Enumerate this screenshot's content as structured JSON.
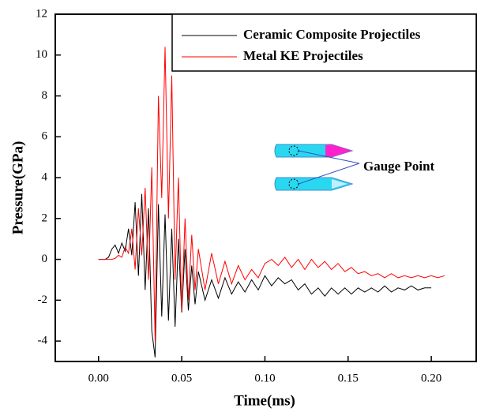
{
  "chart_data": {
    "type": "line",
    "xlabel": "Time(ms)",
    "ylabel": "Pressure(GPa)",
    "annotation": "Gauge Point",
    "x": [
      0,
      0.002,
      0.004,
      0.006,
      0.008,
      0.01,
      0.012,
      0.014,
      0.016,
      0.018,
      0.02,
      0.022,
      0.024,
      0.026,
      0.028,
      0.03,
      0.032,
      0.034,
      0.036,
      0.038,
      0.04,
      0.042,
      0.044,
      0.046,
      0.048,
      0.05,
      0.052,
      0.054,
      0.056,
      0.058,
      0.06,
      0.064,
      0.068,
      0.072,
      0.076,
      0.08,
      0.084,
      0.088,
      0.092,
      0.096,
      0.1,
      0.104,
      0.108,
      0.112,
      0.116,
      0.12,
      0.124,
      0.128,
      0.132,
      0.136,
      0.14,
      0.144,
      0.148,
      0.152,
      0.156,
      0.16,
      0.164,
      0.168,
      0.172,
      0.176,
      0.18,
      0.184,
      0.188,
      0.192,
      0.196,
      0.2,
      0.204,
      0.208
    ],
    "series": [
      {
        "name": "Ceramic Composite Projectiles",
        "color": "#000000",
        "values": [
          0,
          0,
          0,
          0.1,
          0.5,
          0.7,
          0.3,
          0.8,
          0.4,
          1.5,
          0.2,
          2.8,
          -0.8,
          3.2,
          -1.5,
          2.5,
          -3.5,
          -4.8,
          2.7,
          -2.8,
          2.2,
          -3.0,
          1.5,
          -3.3,
          1.0,
          -2.6,
          0.5,
          -2.5,
          -0.3,
          -2.2,
          -0.6,
          -2.0,
          -1.0,
          -1.9,
          -0.9,
          -1.7,
          -1.1,
          -1.6,
          -1.0,
          -1.5,
          -0.8,
          -1.3,
          -0.9,
          -1.2,
          -1.0,
          -1.5,
          -1.2,
          -1.7,
          -1.4,
          -1.8,
          -1.4,
          -1.7,
          -1.4,
          -1.7,
          -1.4,
          -1.6,
          -1.4,
          -1.6,
          -1.3,
          -1.6,
          -1.4,
          -1.5,
          -1.3,
          -1.5,
          -1.4,
          -1.4,
          null,
          null
        ]
      },
      {
        "name": "Metal KE Projectiles",
        "color": "#ff0000",
        "values": [
          0,
          0,
          0,
          0,
          0,
          0.05,
          0.2,
          0.1,
          0.6,
          0.3,
          1.5,
          -0.5,
          2.5,
          0.2,
          3.5,
          -1.0,
          4.5,
          -4.0,
          8.0,
          3.0,
          10.4,
          2.0,
          9.0,
          -1.0,
          4.0,
          -2.5,
          2.0,
          -2.0,
          1.2,
          -1.5,
          0.5,
          -1.5,
          0.3,
          -1.2,
          -0.1,
          -1.2,
          -0.3,
          -1.0,
          -0.5,
          -0.9,
          -0.2,
          0.0,
          -0.3,
          0.1,
          -0.4,
          0.0,
          -0.5,
          0.0,
          -0.4,
          -0.1,
          -0.5,
          -0.2,
          -0.6,
          -0.4,
          -0.7,
          -0.6,
          -0.8,
          -0.7,
          -0.9,
          -0.7,
          -0.9,
          -0.8,
          -0.9,
          -0.8,
          -0.9,
          -0.8,
          -0.9,
          -0.8
        ]
      }
    ],
    "xlim": [
      -0.026,
      0.227
    ],
    "ylim": [
      -5,
      12
    ],
    "xticks": [
      {
        "value": 0,
        "label": "0.00"
      },
      {
        "value": 0.05,
        "label": "0.05"
      },
      {
        "value": 0.1,
        "label": "0.10"
      },
      {
        "value": 0.15,
        "label": "0.15"
      },
      {
        "value": 0.2,
        "label": "0.20"
      }
    ],
    "yticks": [
      -4,
      -2,
      0,
      2,
      4,
      6,
      8,
      10,
      12
    ],
    "legend": "top-right"
  }
}
